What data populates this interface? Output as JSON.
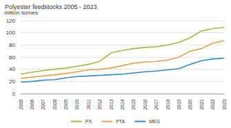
{
  "chart_data": {
    "type": "line",
    "title": "Polyester feedstocks 2005 - 2023",
    "y_label": "million tonnes",
    "categories": [
      "2005",
      "2006",
      "2007",
      "2008",
      "2009",
      "2010",
      "2011",
      "2012",
      "2013",
      "2014",
      "2015",
      "2016",
      "2017",
      "2018",
      "2019",
      "2020",
      "2021",
      "2022",
      "2023"
    ],
    "series": [
      {
        "name": "PX",
        "color": "#a3b63f",
        "values": [
          32,
          35,
          38,
          40,
          42,
          45,
          48,
          53,
          67,
          71,
          74,
          76,
          77,
          80,
          84,
          92,
          103,
          107,
          109
        ]
      },
      {
        "name": "PTA",
        "color": "#e6a14b",
        "values": [
          25,
          27,
          29,
          31,
          33,
          36,
          39,
          40,
          42,
          46,
          50,
          52,
          53,
          55,
          60,
          70,
          74,
          83,
          87
        ]
      },
      {
        "name": "MEG",
        "color": "#2b8cc4",
        "values": [
          19,
          20,
          22,
          23,
          26,
          28,
          29,
          30,
          31,
          32,
          34,
          36,
          37,
          39,
          41,
          48,
          54,
          57,
          58
        ]
      }
    ],
    "ylim": [
      0,
      120
    ],
    "yticks": [
      0,
      20,
      40,
      60,
      80,
      100,
      120
    ],
    "grid": true,
    "legend": "bottom"
  }
}
